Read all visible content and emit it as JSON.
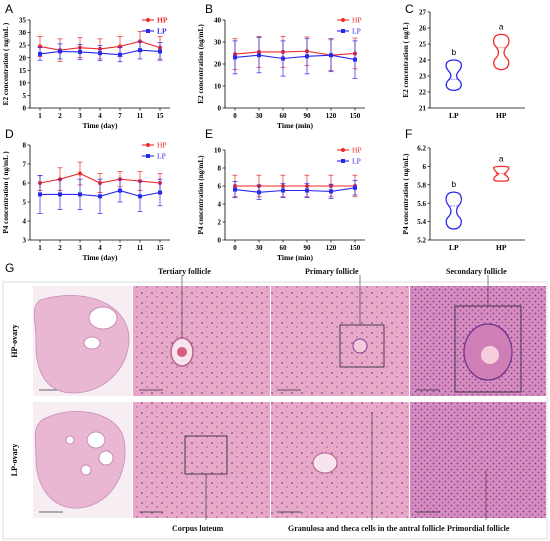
{
  "panel_labels": [
    "A",
    "B",
    "C",
    "D",
    "E",
    "F",
    "G"
  ],
  "colors": {
    "hp": "#ee2a2a",
    "lp": "#2a2aee"
  },
  "chart_data": [
    {
      "id": "A",
      "type": "line",
      "title": "",
      "xlabel": "Time (day)",
      "ylabel": "E2 concentration ( ng/mL )",
      "categories": [
        "1",
        "2",
        "3",
        "4",
        "7",
        "11",
        "15"
      ],
      "ylim": [
        0,
        35
      ],
      "yticks": [
        0,
        5,
        10,
        15,
        20,
        25,
        30,
        35
      ],
      "legend": "top-right",
      "series": [
        {
          "name": "HP",
          "values": [
            24.5,
            23.0,
            24.0,
            23.5,
            24.5,
            26.5,
            24.0
          ],
          "error": [
            4.0,
            4.5,
            4.0,
            4.0,
            4.0,
            4.0,
            4.5
          ]
        },
        {
          "name": "LP",
          "values": [
            21.5,
            22.5,
            22.3,
            21.8,
            21.2,
            23.0,
            22.5
          ],
          "error": [
            2.5,
            3.0,
            3.0,
            3.0,
            2.8,
            3.5,
            3.5
          ]
        }
      ]
    },
    {
      "id": "B",
      "type": "line",
      "title": "",
      "xlabel": "Time (min)",
      "ylabel": "E2 concentration (ng/mL)",
      "categories": [
        "0",
        "30",
        "60",
        "90",
        "120",
        "150"
      ],
      "ylim": [
        0,
        40
      ],
      "yticks": [
        0,
        10,
        20,
        30,
        40
      ],
      "legend": "top-right",
      "series": [
        {
          "name": "HP",
          "values": [
            24.5,
            25.5,
            25.5,
            25.8,
            24.0,
            24.8
          ],
          "error": [
            7.0,
            7.0,
            7.0,
            6.5,
            7.0,
            7.0
          ]
        },
        {
          "name": "LP",
          "values": [
            23.0,
            24.0,
            22.5,
            23.5,
            24.0,
            22.0
          ],
          "error": [
            7.5,
            8.0,
            8.0,
            8.0,
            7.5,
            8.5
          ]
        }
      ]
    },
    {
      "id": "C",
      "type": "violin",
      "title": "",
      "xlabel": "",
      "ylabel": "E2 concentration ( ng/L)",
      "categories": [
        "LP",
        "HP"
      ],
      "ylim": [
        21,
        27
      ],
      "yticks": [
        21,
        22,
        23,
        24,
        25,
        26,
        27
      ],
      "letters": [
        "b",
        "a"
      ],
      "series": [
        {
          "name": "LP",
          "min": 22.1,
          "max": 24.0,
          "median": 22.8
        },
        {
          "name": "HP",
          "min": 23.4,
          "max": 25.6,
          "median": 24.8
        }
      ]
    },
    {
      "id": "D",
      "type": "line",
      "title": "",
      "xlabel": "Time (day)",
      "ylabel": "P4 concentration ( ng/mL )",
      "categories": [
        "1",
        "2",
        "3",
        "4",
        "7",
        "11",
        "15"
      ],
      "ylim": [
        3,
        8
      ],
      "yticks": [
        3,
        4,
        5,
        6,
        7,
        8
      ],
      "legend": "top-right",
      "series": [
        {
          "name": "HP",
          "values": [
            6.0,
            6.2,
            6.5,
            6.0,
            6.2,
            6.1,
            6.0
          ],
          "error": [
            0.4,
            0.6,
            0.6,
            0.5,
            0.4,
            0.5,
            0.5
          ]
        },
        {
          "name": "LP",
          "values": [
            5.4,
            5.4,
            5.4,
            5.3,
            5.6,
            5.3,
            5.5
          ],
          "error": [
            1.0,
            0.8,
            0.8,
            0.9,
            0.6,
            0.8,
            0.7
          ]
        }
      ]
    },
    {
      "id": "E",
      "type": "line",
      "title": "",
      "xlabel": "Time (min)",
      "ylabel": "P4 concentration (ng/mL)",
      "categories": [
        "0",
        "30",
        "60",
        "90",
        "120",
        "150"
      ],
      "ylim": [
        0,
        10
      ],
      "yticks": [
        0,
        2,
        4,
        6,
        8,
        10
      ],
      "legend": "top-right",
      "series": [
        {
          "name": "HP",
          "values": [
            6.0,
            6.0,
            6.0,
            6.0,
            6.0,
            6.0
          ],
          "error": [
            1.2,
            1.2,
            1.2,
            1.2,
            1.2,
            1.2
          ]
        },
        {
          "name": "LP",
          "values": [
            5.6,
            5.3,
            5.5,
            5.5,
            5.4,
            5.8
          ],
          "error": [
            0.9,
            0.8,
            0.8,
            0.8,
            0.8,
            0.8
          ]
        }
      ]
    },
    {
      "id": "F",
      "type": "violin",
      "title": "",
      "xlabel": "",
      "ylabel": "P4 concentration ( ng/mL)",
      "categories": [
        "LP",
        "HP"
      ],
      "ylim": [
        5.2,
        6.2
      ],
      "yticks": [
        5.2,
        5.4,
        5.6,
        5.8,
        6.0,
        6.2
      ],
      "letters": [
        "b",
        "a"
      ],
      "series": [
        {
          "name": "LP",
          "min": 5.32,
          "max": 5.72,
          "median": 5.57
        },
        {
          "name": "HP",
          "min": 5.84,
          "max": 6.0,
          "median": 5.92
        }
      ]
    }
  ],
  "histology": {
    "row_labels": [
      "HP-ovary",
      "LP-ovary"
    ],
    "annotations": {
      "tertiary": "Tertiary follicle",
      "primary": "Primary follicle",
      "secondary": "Secondary follicle",
      "corpus": "Corpus luteum",
      "granulosa": "Granulosa and theca cells in the antral follicle",
      "primordial": "Primordial follicle"
    }
  }
}
